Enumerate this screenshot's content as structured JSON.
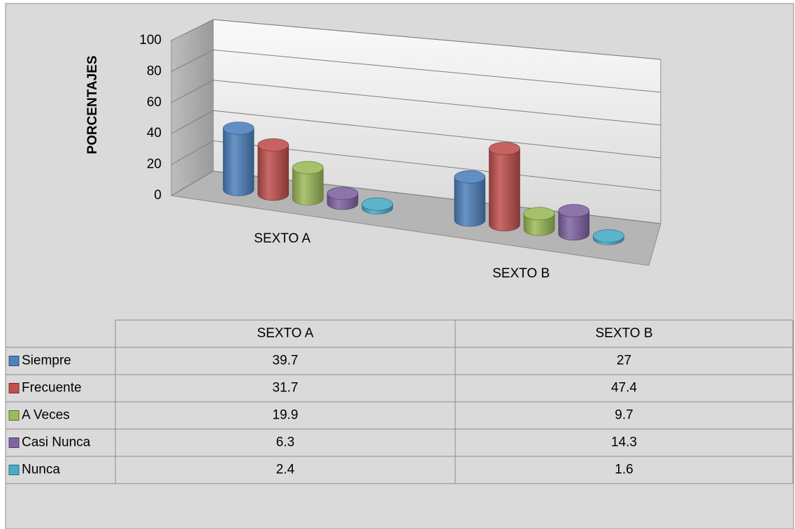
{
  "chart_data": {
    "type": "bar3d",
    "y_label": "PORCENTAJES",
    "categories": [
      "SEXTO A",
      "SEXTO B"
    ],
    "series": [
      {
        "name": "Siempre",
        "color": "#4f81bd",
        "values": [
          39.7,
          27
        ]
      },
      {
        "name": "Frecuente",
        "color": "#c0504d",
        "values": [
          31.7,
          47.4
        ]
      },
      {
        "name": "A Veces",
        "color": "#9bbb59",
        "values": [
          19.9,
          9.7
        ]
      },
      {
        "name": "Casi Nunca",
        "color": "#8064a2",
        "values": [
          6.3,
          14.3
        ]
      },
      {
        "name": "Nunca",
        "color": "#4bacc6",
        "values": [
          2.4,
          1.6
        ]
      }
    ],
    "ylim": [
      0,
      100
    ],
    "yticks": [
      0,
      20,
      40,
      60,
      80,
      100
    ],
    "grid": true,
    "data_table": true
  }
}
